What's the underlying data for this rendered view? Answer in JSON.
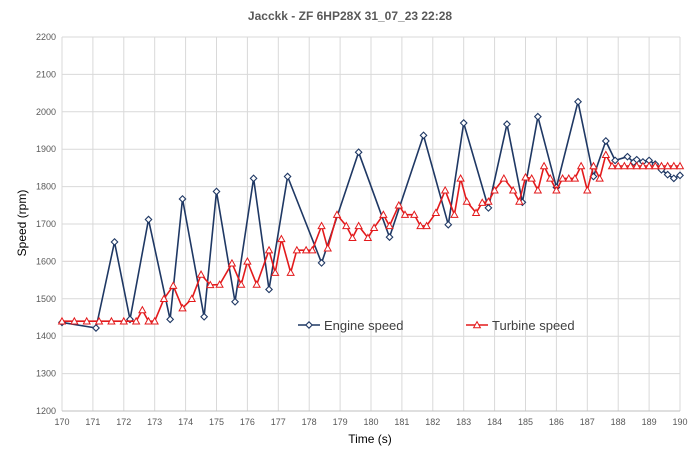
{
  "chart_data": {
    "type": "line",
    "title": "Jacckk - ZF 6HP28X   31_07_23  22:28",
    "xlabel": "Time (s)",
    "ylabel": "Speed (rpm)",
    "xlim": [
      170,
      190
    ],
    "ylim": [
      1200,
      2200
    ],
    "x_ticks": [
      170,
      171,
      172,
      173,
      174,
      175,
      176,
      177,
      178,
      179,
      180,
      181,
      182,
      183,
      184,
      185,
      186,
      187,
      188,
      189,
      190
    ],
    "y_ticks": [
      1200,
      1300,
      1400,
      1500,
      1600,
      1700,
      1800,
      1900,
      2000,
      2100,
      2200
    ],
    "grid": true,
    "legend": "center-right",
    "series": [
      {
        "name": "Engine speed",
        "color": "#1f3864",
        "marker": "diamond",
        "points": [
          [
            170.0,
            1437
          ],
          [
            171.1,
            1422
          ],
          [
            171.7,
            1652
          ],
          [
            172.2,
            1445
          ],
          [
            172.8,
            1712
          ],
          [
            173.5,
            1445
          ],
          [
            173.9,
            1767
          ],
          [
            174.6,
            1452
          ],
          [
            175.0,
            1787
          ],
          [
            175.6,
            1492
          ],
          [
            176.2,
            1822
          ],
          [
            176.7,
            1525
          ],
          [
            177.3,
            1827
          ],
          [
            178.4,
            1596
          ],
          [
            179.6,
            1892
          ],
          [
            180.6,
            1665
          ],
          [
            181.7,
            1937
          ],
          [
            182.5,
            1698
          ],
          [
            183.0,
            1970
          ],
          [
            183.8,
            1743
          ],
          [
            184.4,
            1967
          ],
          [
            184.9,
            1758
          ],
          [
            185.4,
            1987
          ],
          [
            186.0,
            1798
          ],
          [
            186.7,
            2027
          ],
          [
            187.2,
            1827
          ],
          [
            187.6,
            1922
          ],
          [
            187.9,
            1870
          ],
          [
            188.3,
            1880
          ],
          [
            188.5,
            1865
          ],
          [
            188.6,
            1872
          ],
          [
            188.8,
            1866
          ],
          [
            189.0,
            1870
          ],
          [
            189.2,
            1860
          ],
          [
            189.4,
            1845
          ],
          [
            189.6,
            1832
          ],
          [
            189.8,
            1822
          ],
          [
            190.0,
            1830
          ]
        ]
      },
      {
        "name": "Turbine speed",
        "color": "#e31a1c",
        "marker": "triangle",
        "points": [
          [
            170.0,
            1440
          ],
          [
            170.4,
            1440
          ],
          [
            170.8,
            1440
          ],
          [
            171.2,
            1440
          ],
          [
            171.6,
            1440
          ],
          [
            172.0,
            1440
          ],
          [
            172.4,
            1440
          ],
          [
            172.6,
            1470
          ],
          [
            172.8,
            1440
          ],
          [
            173.0,
            1440
          ],
          [
            173.3,
            1500
          ],
          [
            173.6,
            1535
          ],
          [
            173.9,
            1475
          ],
          [
            174.2,
            1500
          ],
          [
            174.5,
            1565
          ],
          [
            174.8,
            1537
          ],
          [
            175.1,
            1538
          ],
          [
            175.5,
            1595
          ],
          [
            175.8,
            1538
          ],
          [
            176.0,
            1600
          ],
          [
            176.3,
            1538
          ],
          [
            176.7,
            1630
          ],
          [
            176.9,
            1570
          ],
          [
            177.1,
            1660
          ],
          [
            177.4,
            1570
          ],
          [
            177.6,
            1630
          ],
          [
            177.9,
            1630
          ],
          [
            178.1,
            1630
          ],
          [
            178.4,
            1695
          ],
          [
            178.6,
            1635
          ],
          [
            178.9,
            1725
          ],
          [
            179.2,
            1695
          ],
          [
            179.4,
            1663
          ],
          [
            179.6,
            1695
          ],
          [
            179.9,
            1663
          ],
          [
            180.1,
            1690
          ],
          [
            180.4,
            1725
          ],
          [
            180.6,
            1695
          ],
          [
            180.9,
            1750
          ],
          [
            181.1,
            1725
          ],
          [
            181.4,
            1725
          ],
          [
            181.6,
            1695
          ],
          [
            181.8,
            1695
          ],
          [
            182.1,
            1730
          ],
          [
            182.4,
            1790
          ],
          [
            182.7,
            1725
          ],
          [
            182.9,
            1822
          ],
          [
            183.1,
            1760
          ],
          [
            183.4,
            1730
          ],
          [
            183.6,
            1757
          ],
          [
            183.8,
            1760
          ],
          [
            184.0,
            1790
          ],
          [
            184.3,
            1822
          ],
          [
            184.6,
            1790
          ],
          [
            184.8,
            1760
          ],
          [
            185.0,
            1825
          ],
          [
            185.2,
            1822
          ],
          [
            185.4,
            1790
          ],
          [
            185.6,
            1855
          ],
          [
            185.8,
            1822
          ],
          [
            186.0,
            1790
          ],
          [
            186.2,
            1822
          ],
          [
            186.4,
            1822
          ],
          [
            186.6,
            1822
          ],
          [
            186.8,
            1855
          ],
          [
            187.0,
            1790
          ],
          [
            187.2,
            1855
          ],
          [
            187.4,
            1822
          ],
          [
            187.6,
            1885
          ],
          [
            187.8,
            1855
          ],
          [
            188.0,
            1855
          ],
          [
            188.2,
            1855
          ],
          [
            188.4,
            1855
          ],
          [
            188.6,
            1855
          ],
          [
            188.8,
            1855
          ],
          [
            189.0,
            1855
          ],
          [
            189.2,
            1855
          ],
          [
            189.4,
            1855
          ],
          [
            189.6,
            1855
          ],
          [
            189.8,
            1855
          ],
          [
            190.0,
            1855
          ]
        ]
      }
    ]
  }
}
